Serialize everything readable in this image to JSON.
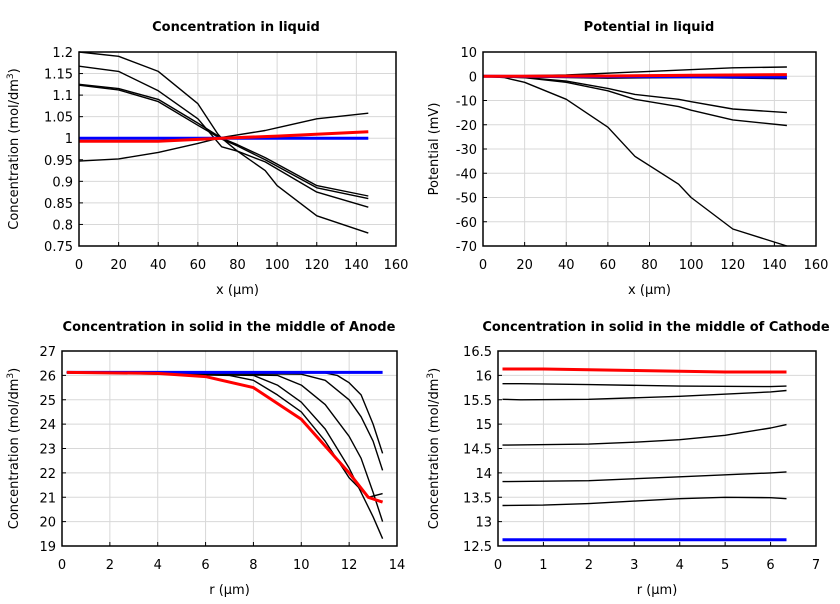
{
  "chart_data": [
    {
      "type": "line",
      "title": "Concentration in liquid",
      "xlabel": "x (µm)",
      "ylabel_main": "Concentration (mol/dm",
      "ylabel_sup": "3",
      "ylabel_end": ")",
      "xlim": [
        0,
        160
      ],
      "ylim": [
        0.75,
        1.2
      ],
      "xticks": [
        0,
        20,
        40,
        60,
        80,
        100,
        120,
        140,
        160
      ],
      "yticks": [
        0.75,
        0.8,
        0.85,
        0.9,
        0.95,
        1,
        1.05,
        1.1,
        1.15,
        1.2
      ],
      "grid": true,
      "series": [
        {
          "color": "#000000",
          "x": [
            0,
            20,
            40,
            60,
            70,
            72,
            80,
            94,
            100,
            120,
            146
          ],
          "y": [
            1.2,
            1.19,
            1.155,
            1.08,
            1.01,
            1.0,
            0.97,
            0.925,
            0.89,
            0.82,
            0.78
          ]
        },
        {
          "color": "#000000",
          "x": [
            0,
            20,
            40,
            60,
            72,
            80,
            94,
            120,
            146
          ],
          "y": [
            1.167,
            1.155,
            1.11,
            1.045,
            0.98,
            0.97,
            0.945,
            0.875,
            0.84
          ]
        },
        {
          "color": "#000000",
          "x": [
            0,
            20,
            40,
            60,
            72,
            80,
            94,
            120,
            146
          ],
          "y": [
            1.125,
            1.115,
            1.09,
            1.035,
            1.0,
            0.985,
            0.955,
            0.89,
            0.866
          ]
        },
        {
          "color": "#000000",
          "x": [
            0,
            20,
            40,
            60,
            72,
            80,
            94,
            120,
            146
          ],
          "y": [
            1.123,
            1.112,
            1.085,
            1.03,
            0.998,
            0.982,
            0.95,
            0.885,
            0.86
          ]
        },
        {
          "color": "#000000",
          "x": [
            0,
            20,
            40,
            60,
            72,
            94,
            120,
            146
          ],
          "y": [
            0.947,
            0.952,
            0.967,
            0.988,
            1.002,
            1.018,
            1.045,
            1.058
          ]
        },
        {
          "color": "#0000ff",
          "bold": true,
          "x": [
            0,
            146
          ],
          "y": [
            1.0,
            1.0
          ]
        },
        {
          "color": "#ff0000",
          "bold": true,
          "x": [
            0,
            40,
            72,
            100,
            146
          ],
          "y": [
            0.993,
            0.993,
            1.0,
            1.005,
            1.015
          ]
        }
      ]
    },
    {
      "type": "line",
      "title": "Potential in liquid",
      "xlabel": "x (µm)",
      "ylabel_main": "Potential (mV)",
      "xlim": [
        0,
        160
      ],
      "ylim": [
        -70,
        10
      ],
      "xticks": [
        0,
        20,
        40,
        60,
        80,
        100,
        120,
        140,
        160
      ],
      "yticks": [
        -70,
        -60,
        -50,
        -40,
        -30,
        -20,
        -10,
        0,
        10
      ],
      "grid": true,
      "series": [
        {
          "color": "#000000",
          "x": [
            0,
            40,
            80,
            120,
            146
          ],
          "y": [
            0,
            0.5,
            2,
            3.5,
            3.8
          ]
        },
        {
          "color": "#000000",
          "x": [
            0,
            60,
            100,
            146
          ],
          "y": [
            0,
            -0.8,
            -0.5,
            -1
          ]
        },
        {
          "color": "#000000",
          "x": [
            0,
            20,
            40,
            60,
            73,
            94,
            100,
            120,
            146
          ],
          "y": [
            0,
            -0.5,
            -2,
            -5,
            -7.5,
            -9.5,
            -10.5,
            -13.5,
            -15
          ]
        },
        {
          "color": "#000000",
          "x": [
            0,
            20,
            40,
            60,
            73,
            94,
            100,
            120,
            146
          ],
          "y": [
            0,
            -0.6,
            -2.5,
            -6,
            -9.5,
            -12.5,
            -14,
            -18,
            -20.3
          ]
        },
        {
          "color": "#000000",
          "x": [
            0,
            10,
            20,
            40,
            60,
            73,
            94,
            100,
            120,
            146
          ],
          "y": [
            0,
            -0.5,
            -2.5,
            -9.5,
            -21,
            -33,
            -44.5,
            -50,
            -63,
            -70
          ]
        },
        {
          "color": "#0000ff",
          "bold": true,
          "x": [
            0,
            146
          ],
          "y": [
            0,
            -0.3
          ]
        },
        {
          "color": "#ff0000",
          "bold": true,
          "x": [
            0,
            60,
            100,
            146
          ],
          "y": [
            0,
            0.1,
            0.4,
            0.7
          ]
        }
      ]
    },
    {
      "type": "line",
      "title": "Concentration in solid in the middle of Anode",
      "xlabel": "r (µm)",
      "ylabel_main": "Concentration (mol/dm",
      "ylabel_sup": "3",
      "ylabel_end": ")",
      "xlim": [
        0,
        14
      ],
      "ylim": [
        19,
        27
      ],
      "xticks": [
        0,
        2,
        4,
        6,
        8,
        10,
        12,
        14
      ],
      "yticks": [
        19,
        20,
        21,
        22,
        23,
        24,
        25,
        26,
        27
      ],
      "grid": true,
      "series": [
        {
          "color": "#000000",
          "x": [
            0.2,
            11,
            11.5,
            12,
            12.5,
            13,
            13.4
          ],
          "y": [
            26.12,
            26.1,
            26.0,
            25.7,
            25.2,
            24.0,
            22.8
          ]
        },
        {
          "color": "#000000",
          "x": [
            0.2,
            10,
            11,
            12,
            12.5,
            13,
            13.4
          ],
          "y": [
            26.12,
            26.05,
            25.8,
            25.0,
            24.3,
            23.3,
            22.1
          ]
        },
        {
          "color": "#000000",
          "x": [
            0.2,
            9,
            10,
            11,
            12,
            12.5,
            13,
            13.4
          ],
          "y": [
            26.12,
            26.0,
            25.6,
            24.8,
            23.5,
            22.6,
            21.2,
            20.0
          ]
        },
        {
          "color": "#000000",
          "x": [
            0.2,
            8,
            9,
            10,
            11,
            12,
            12.5,
            13,
            13.4
          ],
          "y": [
            26.12,
            26.0,
            25.6,
            24.9,
            23.8,
            22.2,
            21.2,
            20.2,
            19.3
          ]
        },
        {
          "color": "#000000",
          "x": [
            0.2,
            7,
            8,
            9,
            10,
            11,
            12,
            12.8,
            13.4
          ],
          "y": [
            26.12,
            26.0,
            25.8,
            25.2,
            24.5,
            23.3,
            21.8,
            21.0,
            21.15
          ]
        },
        {
          "color": "#0000ff",
          "bold": true,
          "x": [
            0.2,
            13.4
          ],
          "y": [
            26.12,
            26.12
          ]
        },
        {
          "color": "#ff0000",
          "bold": true,
          "x": [
            0.2,
            4,
            6,
            8,
            10,
            12,
            12.8,
            13.4
          ],
          "y": [
            26.12,
            26.08,
            25.95,
            25.5,
            24.2,
            22.0,
            21.0,
            20.8
          ]
        }
      ]
    },
    {
      "type": "line",
      "title": "Concentration in solid in the middle of Cathode",
      "xlabel": "r (µm)",
      "ylabel_main": "Concentration (mol/dm",
      "ylabel_sup": "3",
      "ylabel_end": ")",
      "xlim": [
        0,
        7
      ],
      "ylim": [
        12.5,
        16.5
      ],
      "xticks": [
        0,
        1,
        2,
        3,
        4,
        5,
        6,
        7
      ],
      "yticks": [
        12.5,
        13,
        13.5,
        14,
        14.5,
        15,
        15.5,
        16,
        16.5
      ],
      "grid": true,
      "series": [
        {
          "color": "#000000",
          "x": [
            0.1,
            0.5,
            2,
            4,
            6,
            6.35
          ],
          "y": [
            15.83,
            15.83,
            15.81,
            15.78,
            15.77,
            15.78
          ]
        },
        {
          "color": "#000000",
          "x": [
            0.1,
            0.5,
            2,
            4,
            6,
            6.35
          ],
          "y": [
            15.51,
            15.5,
            15.51,
            15.57,
            15.66,
            15.69
          ]
        },
        {
          "color": "#000000",
          "x": [
            0.1,
            2,
            3,
            4,
            5,
            6,
            6.35
          ],
          "y": [
            14.57,
            14.59,
            14.63,
            14.68,
            14.77,
            14.92,
            14.99
          ]
        },
        {
          "color": "#000000",
          "x": [
            0.1,
            2,
            4,
            6,
            6.35
          ],
          "y": [
            13.82,
            13.84,
            13.92,
            14.0,
            14.02
          ]
        },
        {
          "color": "#000000",
          "x": [
            0.1,
            1,
            2,
            3,
            4,
            5,
            6,
            6.35
          ],
          "y": [
            13.33,
            13.34,
            13.37,
            13.42,
            13.47,
            13.5,
            13.49,
            13.47
          ]
        },
        {
          "color": "#0000ff",
          "bold": true,
          "x": [
            0.1,
            6.35
          ],
          "y": [
            12.63,
            12.63
          ]
        },
        {
          "color": "#ff0000",
          "bold": true,
          "x": [
            0.1,
            1,
            3,
            5,
            6.35
          ],
          "y": [
            16.13,
            16.13,
            16.1,
            16.07,
            16.07
          ]
        }
      ]
    }
  ]
}
